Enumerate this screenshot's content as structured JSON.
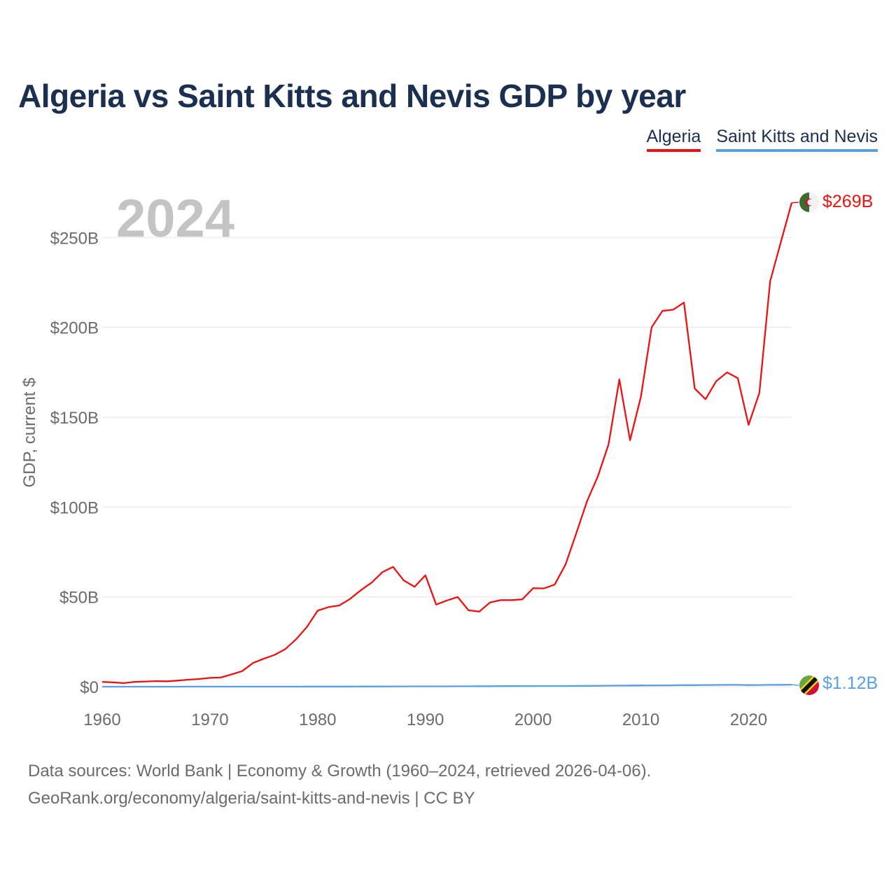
{
  "title": "Algeria vs Saint Kitts and Nevis GDP by year",
  "year_label": "2024",
  "legend": [
    {
      "label": "Algeria",
      "color": "#ee1111"
    },
    {
      "label": "Saint Kitts and Nevis",
      "color": "#5a9fe0"
    }
  ],
  "footer": {
    "line1": "Data sources: World Bank | Economy & Growth (1960–2024, retrieved 2026-04-06).",
    "line2": "GeoRank.org/economy/algeria/saint-kitts-and-nevis | CC BY"
  },
  "chart_data": {
    "type": "line",
    "title": "Algeria vs Saint Kitts and Nevis GDP by year",
    "xlabel": "",
    "ylabel": "GDP, current $",
    "xlim": [
      1960,
      2024
    ],
    "ylim": [
      0,
      270
    ],
    "x_ticks": [
      1960,
      1970,
      1980,
      1990,
      2000,
      2010,
      2020
    ],
    "y_ticks": [
      0,
      50,
      100,
      150,
      200,
      250
    ],
    "y_tick_labels": [
      "$0",
      "$50B",
      "$100B",
      "$150B",
      "$200B",
      "$250B"
    ],
    "grid": true,
    "x": [
      1960,
      1961,
      1962,
      1963,
      1964,
      1965,
      1966,
      1967,
      1968,
      1969,
      1970,
      1971,
      1972,
      1973,
      1974,
      1975,
      1976,
      1977,
      1978,
      1979,
      1980,
      1981,
      1982,
      1983,
      1984,
      1985,
      1986,
      1987,
      1988,
      1989,
      1990,
      1991,
      1992,
      1993,
      1994,
      1995,
      1996,
      1997,
      1998,
      1999,
      2000,
      2001,
      2002,
      2003,
      2004,
      2005,
      2006,
      2007,
      2008,
      2009,
      2010,
      2011,
      2012,
      2013,
      2014,
      2015,
      2016,
      2017,
      2018,
      2019,
      2020,
      2021,
      2022,
      2023,
      2024
    ],
    "series": [
      {
        "name": "Algeria",
        "color": "#ee1111",
        "end_label": "$269B",
        "values": [
          2.7,
          2.4,
          2.0,
          2.7,
          2.9,
          3.1,
          3.0,
          3.4,
          3.9,
          4.3,
          4.9,
          5.1,
          6.8,
          8.7,
          13.2,
          15.6,
          17.7,
          20.9,
          26.4,
          33.2,
          42.3,
          44.3,
          45.2,
          48.8,
          53.7,
          57.9,
          63.7,
          66.7,
          59.1,
          55.6,
          62.0,
          45.7,
          48.0,
          49.9,
          42.5,
          41.8,
          46.9,
          48.2,
          48.2,
          48.6,
          54.8,
          54.7,
          56.8,
          67.9,
          85.3,
          103.2,
          117.0,
          134.9,
          171.0,
          137.2,
          161.2,
          200.0,
          209.1,
          209.8,
          213.8,
          165.9,
          160.0,
          170.1,
          174.9,
          171.7,
          145.7,
          163.5,
          225.6,
          247.6,
          269.3
        ]
      },
      {
        "name": "Saint Kitts and Nevis",
        "color": "#5a9fe0",
        "end_label": "$1.12B",
        "values": [
          0.012,
          0.013,
          0.013,
          0.014,
          0.015,
          0.016,
          0.017,
          0.018,
          0.02,
          0.021,
          0.022,
          0.025,
          0.028,
          0.031,
          0.036,
          0.044,
          0.045,
          0.048,
          0.053,
          0.06,
          0.068,
          0.076,
          0.083,
          0.09,
          0.1,
          0.11,
          0.125,
          0.14,
          0.16,
          0.18,
          0.19,
          0.2,
          0.21,
          0.22,
          0.25,
          0.28,
          0.29,
          0.31,
          0.33,
          0.34,
          0.36,
          0.38,
          0.39,
          0.4,
          0.43,
          0.48,
          0.52,
          0.57,
          0.63,
          0.65,
          0.7,
          0.73,
          0.74,
          0.79,
          0.85,
          0.87,
          0.92,
          0.96,
          1.0,
          1.02,
          0.88,
          0.92,
          1.0,
          1.07,
          1.12
        ]
      }
    ]
  }
}
